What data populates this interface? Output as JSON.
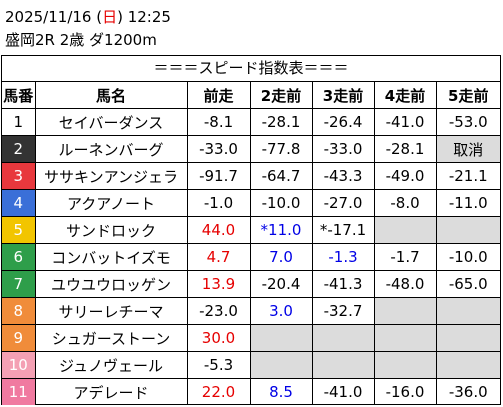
{
  "header": {
    "date_prefix": "2025/11/16 (",
    "day": "日",
    "date_suffix": ") 12:25",
    "race_info": "盛岡2R 2歳 ダ1200m"
  },
  "table": {
    "title": "＝＝＝スピード指数表＝＝＝",
    "columns": [
      "馬番",
      "馬名",
      "前走",
      "2走前",
      "3走前",
      "4走前",
      "5走前"
    ],
    "rows": [
      {
        "num": "1",
        "color": "#ffffff",
        "text_color": "#000000",
        "name": "セイバーダンス",
        "cells": [
          {
            "v": "-8.1",
            "c": "black"
          },
          {
            "v": "-28.1",
            "c": "black"
          },
          {
            "v": "-26.4",
            "c": "black"
          },
          {
            "v": "-41.0",
            "c": "black"
          },
          {
            "v": "-53.0",
            "c": "black"
          }
        ]
      },
      {
        "num": "2",
        "color": "#333333",
        "text_color": "#ffffff",
        "name": "ルーネンバーグ",
        "cells": [
          {
            "v": "-33.0",
            "c": "black"
          },
          {
            "v": "-77.8",
            "c": "black"
          },
          {
            "v": "-33.0",
            "c": "black"
          },
          {
            "v": "-28.1",
            "c": "black"
          },
          {
            "v": "取消",
            "c": "cancel"
          }
        ]
      },
      {
        "num": "3",
        "color": "#e8383d",
        "text_color": "#ffffff",
        "name": "ササキンアンジェラ",
        "cells": [
          {
            "v": "-91.7",
            "c": "black"
          },
          {
            "v": "-64.7",
            "c": "black"
          },
          {
            "v": "-43.3",
            "c": "black"
          },
          {
            "v": "-49.0",
            "c": "black"
          },
          {
            "v": "-21.1",
            "c": "black"
          }
        ]
      },
      {
        "num": "4",
        "color": "#3a6fd8",
        "text_color": "#ffffff",
        "name": "アクアノート",
        "cells": [
          {
            "v": "-1.0",
            "c": "black"
          },
          {
            "v": "-10.0",
            "c": "black"
          },
          {
            "v": "-27.0",
            "c": "black"
          },
          {
            "v": "-8.0",
            "c": "black"
          },
          {
            "v": "-11.0",
            "c": "black"
          }
        ]
      },
      {
        "num": "5",
        "color": "#f2c500",
        "text_color": "#ffffff",
        "name": "サンドロック",
        "cells": [
          {
            "v": "44.0",
            "c": "redbold"
          },
          {
            "v": "*11.0",
            "c": "bluebold"
          },
          {
            "v": "*-17.1",
            "c": "black"
          },
          {
            "v": "",
            "c": "empty"
          },
          {
            "v": "",
            "c": "empty"
          }
        ]
      },
      {
        "num": "6",
        "color": "#2e9e4a",
        "text_color": "#ffffff",
        "name": "コンバットイズモ",
        "cells": [
          {
            "v": "4.7",
            "c": "red"
          },
          {
            "v": "7.0",
            "c": "blue"
          },
          {
            "v": "-1.3",
            "c": "blue"
          },
          {
            "v": "-1.7",
            "c": "black"
          },
          {
            "v": "-10.0",
            "c": "black"
          }
        ]
      },
      {
        "num": "7",
        "color": "#2e9e4a",
        "text_color": "#ffffff",
        "name": "ユウユウロッゲン",
        "cells": [
          {
            "v": "13.9",
            "c": "red"
          },
          {
            "v": "-20.4",
            "c": "black"
          },
          {
            "v": "-41.3",
            "c": "black"
          },
          {
            "v": "-48.0",
            "c": "black"
          },
          {
            "v": "-65.0",
            "c": "black"
          }
        ]
      },
      {
        "num": "8",
        "color": "#f08c3a",
        "text_color": "#ffffff",
        "name": "サリーレチーマ",
        "cells": [
          {
            "v": "-23.0",
            "c": "black"
          },
          {
            "v": "3.0",
            "c": "blue"
          },
          {
            "v": "-32.7",
            "c": "black"
          },
          {
            "v": "",
            "c": "empty"
          },
          {
            "v": "",
            "c": "empty"
          }
        ]
      },
      {
        "num": "9",
        "color": "#f08c3a",
        "text_color": "#ffffff",
        "name": "シュガーストーン",
        "cells": [
          {
            "v": "30.0",
            "c": "red"
          },
          {
            "v": "",
            "c": "empty"
          },
          {
            "v": "",
            "c": "empty"
          },
          {
            "v": "",
            "c": "empty"
          },
          {
            "v": "",
            "c": "empty"
          }
        ]
      },
      {
        "num": "10",
        "color": "#f4a0b4",
        "text_color": "#ffffff",
        "name": "ジュノヴェール",
        "cells": [
          {
            "v": "-5.3",
            "c": "black"
          },
          {
            "v": "",
            "c": "empty"
          },
          {
            "v": "",
            "c": "empty"
          },
          {
            "v": "",
            "c": "empty"
          },
          {
            "v": "",
            "c": "empty"
          }
        ]
      },
      {
        "num": "11",
        "color": "#f07aa0",
        "text_color": "#ffffff",
        "name": "アデレード",
        "cells": [
          {
            "v": "22.0",
            "c": "red"
          },
          {
            "v": "8.5",
            "c": "blue"
          },
          {
            "v": "-41.0",
            "c": "black"
          },
          {
            "v": "-16.0",
            "c": "black"
          },
          {
            "v": "-36.0",
            "c": "black"
          }
        ]
      }
    ]
  }
}
